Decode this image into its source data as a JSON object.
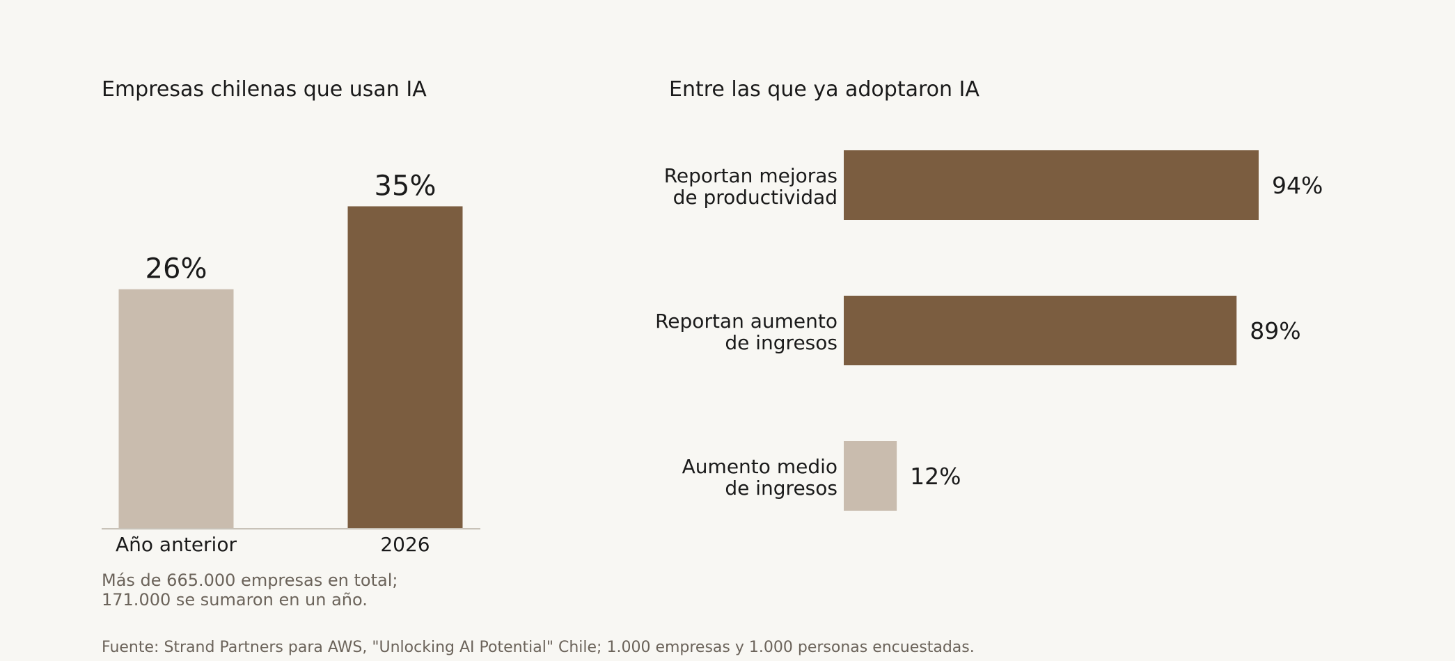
{
  "colors": {
    "background": "#f8f7f3",
    "highlight": "#7b5d40",
    "muted": "#c9bcae",
    "text": "#1a1a1a",
    "note": "#6b635a",
    "axis": "#c8c2b8"
  },
  "chart_data": [
    {
      "type": "bar",
      "title": "Empresas chilenas que usan IA",
      "categories": [
        "Año anterior",
        "2026"
      ],
      "values": [
        26,
        35
      ],
      "value_labels": [
        "26%",
        "35%"
      ],
      "bar_colors": [
        "#c9bcae",
        "#7b5d40"
      ],
      "ylim": [
        0,
        37
      ],
      "xlabel": "",
      "ylabel": "",
      "grid": false,
      "note_lines": [
        "Más de 665.000 empresas en total;",
        "171.000 se sumaron en un año."
      ]
    },
    {
      "type": "bar",
      "orientation": "horizontal",
      "title": "Entre las que ya adoptaron IA",
      "categories": [
        [
          "Reportan mejoras",
          "de productividad"
        ],
        [
          "Reportan aumento",
          "de ingresos"
        ],
        [
          "Aumento medio",
          "de ingresos"
        ]
      ],
      "values": [
        94,
        89,
        12
      ],
      "value_labels": [
        "94%",
        "89%",
        "12%"
      ],
      "bar_colors": [
        "#7b5d40",
        "#7b5d40",
        "#c9bcae"
      ],
      "xlim": [
        0,
        100
      ],
      "grid": false
    }
  ],
  "source": "Fuente: Strand Partners para AWS, \"Unlocking AI Potential\" Chile; 1.000 empresas y 1.000 personas encuestadas."
}
